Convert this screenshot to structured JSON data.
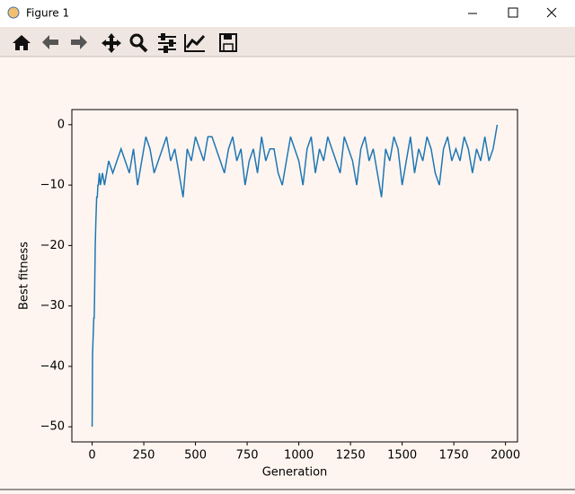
{
  "window": {
    "title": "Figure 1"
  },
  "chart_data": {
    "type": "line",
    "xlabel": "Generation",
    "ylabel": "Best fitness",
    "x": [
      0,
      2,
      4,
      6,
      8,
      10,
      12,
      15,
      18,
      20,
      22,
      25,
      28,
      30,
      35,
      40,
      50,
      60,
      70,
      80,
      100,
      120,
      140,
      160,
      180,
      200,
      220,
      240,
      260,
      280,
      300,
      320,
      340,
      360,
      380,
      400,
      420,
      440,
      460,
      480,
      500,
      520,
      540,
      560,
      580,
      600,
      620,
      640,
      660,
      680,
      700,
      720,
      740,
      760,
      780,
      800,
      820,
      840,
      860,
      880,
      900,
      920,
      940,
      960,
      980,
      1000,
      1020,
      1040,
      1060,
      1080,
      1100,
      1120,
      1140,
      1160,
      1180,
      1200,
      1220,
      1240,
      1260,
      1280,
      1300,
      1320,
      1340,
      1360,
      1380,
      1400,
      1420,
      1440,
      1460,
      1480,
      1500,
      1520,
      1540,
      1560,
      1580,
      1600,
      1620,
      1640,
      1660,
      1680,
      1700,
      1720,
      1740,
      1760,
      1780,
      1800,
      1820,
      1840,
      1860,
      1880,
      1900,
      1920,
      1940,
      1960
    ],
    "values": [
      -50,
      -38,
      -36,
      -34,
      -32,
      -32,
      -28,
      -20,
      -16,
      -14,
      -12,
      -12,
      -10,
      -10,
      -8,
      -10,
      -8,
      -10,
      -8,
      -6,
      -8,
      -6,
      -4,
      -6,
      -8,
      -4,
      -10,
      -6,
      -2,
      -4,
      -8,
      -6,
      -4,
      -2,
      -6,
      -4,
      -8,
      -12,
      -4,
      -6,
      -2,
      -4,
      -6,
      -2,
      -2,
      -4,
      -6,
      -8,
      -4,
      -2,
      -6,
      -4,
      -10,
      -6,
      -4,
      -8,
      -2,
      -6,
      -4,
      -4,
      -8,
      -10,
      -6,
      -2,
      -4,
      -6,
      -10,
      -4,
      -2,
      -8,
      -4,
      -6,
      -2,
      -4,
      -6,
      -8,
      -2,
      -4,
      -6,
      -10,
      -4,
      -2,
      -6,
      -4,
      -8,
      -12,
      -4,
      -6,
      -2,
      -4,
      -10,
      -6,
      -2,
      -8,
      -4,
      -6,
      -2,
      -4,
      -8,
      -10,
      -4,
      -2,
      -6,
      -4,
      -6,
      -2,
      -4,
      -8,
      -4,
      -6,
      -2,
      -6,
      -4,
      0
    ],
    "color": "#1f77b4",
    "xlim": [
      -98,
      2058
    ],
    "ylim": [
      -52.5,
      2.5
    ],
    "xticks": [
      0,
      250,
      500,
      750,
      1000,
      1250,
      1500,
      1750,
      2000
    ],
    "yticks": [
      0,
      {
        "value": -10,
        "label": "−10"
      },
      {
        "value": -20,
        "label": "−20"
      },
      {
        "value": -30,
        "label": "−30"
      },
      {
        "value": -40,
        "label": "−40"
      },
      {
        "value": -50,
        "label": "−50"
      }
    ],
    "grid": false
  }
}
